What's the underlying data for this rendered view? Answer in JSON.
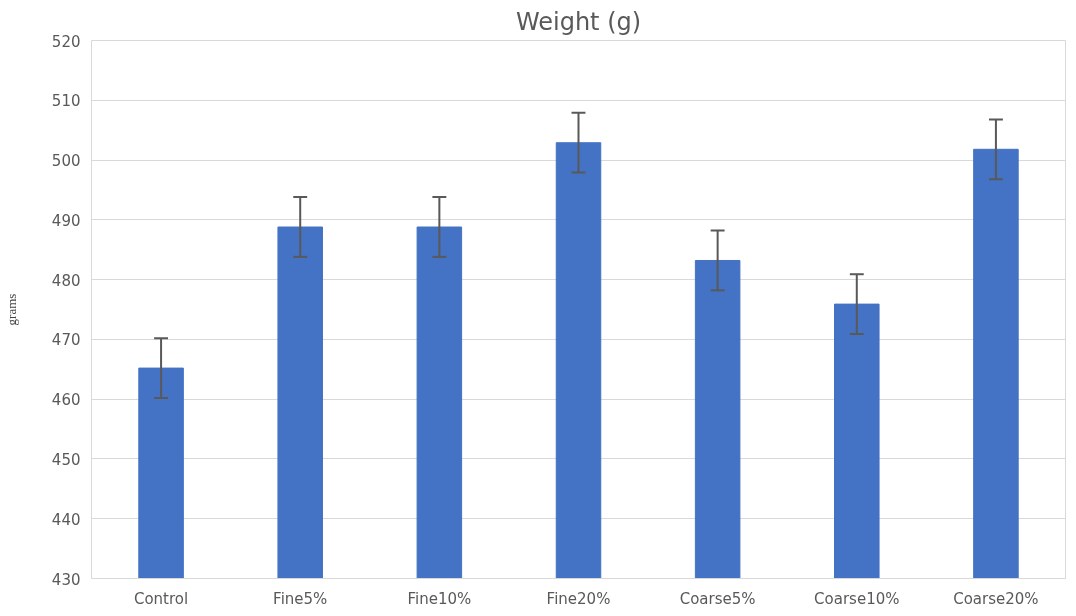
{
  "chart_data": {
    "type": "bar",
    "title": "Weight (g)",
    "ylabel": "grams",
    "categories": [
      "Control",
      "Fine5%",
      "Fine10%",
      "Fine20%",
      "Coarse5%",
      "Coarse10%",
      "Coarse20%"
    ],
    "values": [
      465.2,
      488.8,
      488.8,
      502.9,
      483.2,
      475.9,
      501.8
    ],
    "errors": [
      5,
      5,
      5,
      5,
      5,
      5,
      5
    ],
    "color": "#4472c4",
    "ylim": [
      430,
      520
    ],
    "yticks": [
      430,
      440,
      450,
      460,
      470,
      480,
      490,
      500,
      510,
      520
    ],
    "grid": "y"
  }
}
